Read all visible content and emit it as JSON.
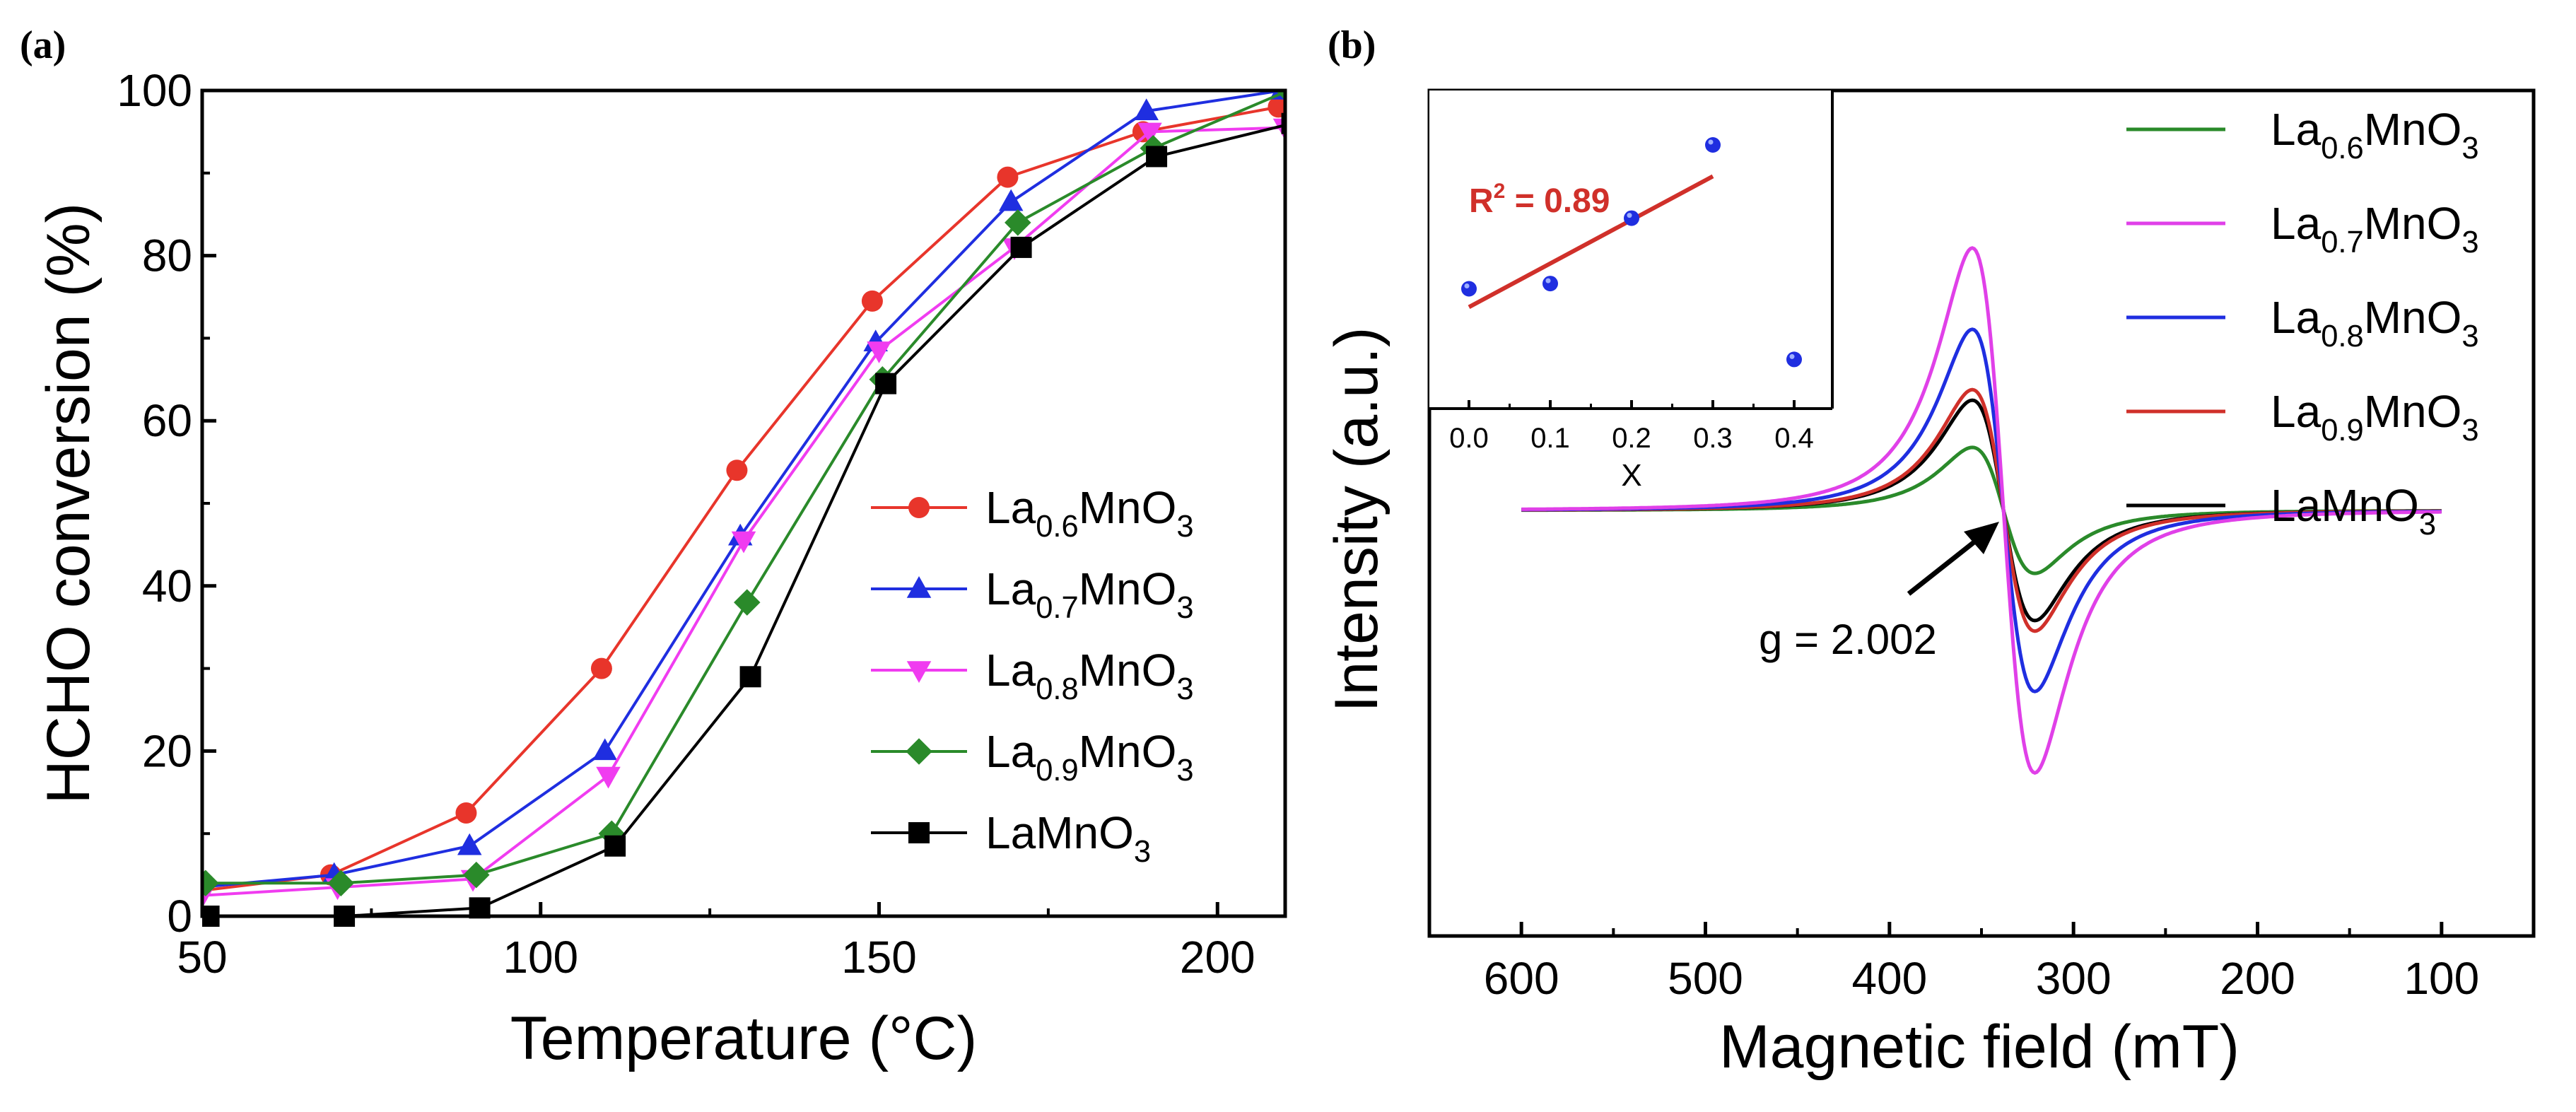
{
  "chart_data": [
    {
      "panel": "(a)",
      "type": "line",
      "xlabel": "Temperature (°C)",
      "ylabel": "HCHO conversion (%)",
      "xlim": [
        50,
        210
      ],
      "ylim": [
        0,
        100
      ],
      "xticks": [
        50,
        100,
        150,
        200
      ],
      "yticks": [
        0,
        20,
        40,
        60,
        80,
        100
      ],
      "series": [
        {
          "name": "La0.6MnO3",
          "label": {
            "base": "La",
            "sub": "0.6",
            "rest": "MnO",
            "sub2": "3"
          },
          "color": "#e8352b",
          "marker": "circle",
          "x": [
            50,
            70,
            90,
            110,
            130,
            150,
            170,
            190,
            210
          ],
          "y": [
            3,
            5,
            12.5,
            30,
            54,
            74.5,
            89.5,
            95,
            98
          ]
        },
        {
          "name": "La0.7MnO3",
          "label": {
            "base": "La",
            "sub": "0.7",
            "rest": "MnO",
            "sub2": "3"
          },
          "color": "#1f2ee0",
          "marker": "triangle-up",
          "x": [
            50,
            70,
            90,
            110,
            130,
            150,
            170,
            190,
            210
          ],
          "y": [
            3.5,
            5,
            8.5,
            20,
            46,
            69.5,
            86.5,
            97.5,
            100
          ]
        },
        {
          "name": "La0.8MnO3",
          "label": {
            "base": "La",
            "sub": "0.8",
            "rest": "MnO",
            "sub2": "3"
          },
          "color": "#f03cf0",
          "marker": "triangle-down",
          "x": [
            50,
            70,
            90,
            110,
            130,
            150,
            170,
            190,
            210
          ],
          "y": [
            2.5,
            3.5,
            4.5,
            17,
            45.5,
            68.5,
            81,
            95,
            95.5
          ]
        },
        {
          "name": "La0.9MnO3",
          "label": {
            "base": "La",
            "sub": "0.9",
            "rest": "MnO",
            "sub2": "3"
          },
          "color": "#2a8a2a",
          "marker": "diamond",
          "x": [
            50,
            70,
            90,
            110,
            130,
            150,
            170,
            190,
            210
          ],
          "y": [
            4,
            4,
            5,
            10,
            38,
            65,
            84,
            93,
            100
          ]
        },
        {
          "name": "LaMnO3",
          "label": {
            "base": "LaMnO",
            "sub": "",
            "rest": "",
            "sub2": "3"
          },
          "color": "#000000",
          "marker": "square",
          "x": [
            50,
            70,
            90,
            110,
            130,
            150,
            170,
            190,
            210
          ],
          "y": [
            0,
            0,
            1,
            8.5,
            29,
            64.5,
            81,
            92,
            96
          ]
        }
      ]
    },
    {
      "panel": "(b)",
      "type": "line",
      "xlabel": "Magnetic field (mT)",
      "ylabel": "Intensity (a.u.)",
      "xlim": [
        650,
        50
      ],
      "xticks": [
        600,
        500,
        400,
        300,
        200,
        100
      ],
      "center_field": 338,
      "annotation": "g = 2.002",
      "series": [
        {
          "name": "La0.6MnO3",
          "label": {
            "base": "La",
            "sub": "0.6",
            "rest": "MnO",
            "sub2": "3"
          },
          "color": "#2a8a2a",
          "amplitude": 0.24
        },
        {
          "name": "La0.7MnO3",
          "label": {
            "base": "La",
            "sub": "0.7",
            "rest": "MnO",
            "sub2": "3"
          },
          "color": "#e040e8",
          "amplitude": 1.0
        },
        {
          "name": "La0.8MnO3",
          "label": {
            "base": "La",
            "sub": "0.8",
            "rest": "MnO",
            "sub2": "3"
          },
          "color": "#1f2ee0",
          "amplitude": 0.69
        },
        {
          "name": "La0.9MnO3",
          "label": {
            "base": "La",
            "sub": "0.9",
            "rest": "MnO",
            "sub2": "3"
          },
          "color": "#d0302a",
          "amplitude": 0.46
        },
        {
          "name": "LaMnO3",
          "label": {
            "base": "LaMnO",
            "sub": "",
            "rest": "",
            "sub2": "3"
          },
          "color": "#000000",
          "amplitude": 0.42
        }
      ],
      "inset": {
        "type": "scatter",
        "xlabel": "X",
        "xticks": [
          0.0,
          0.1,
          0.2,
          0.3,
          0.4
        ],
        "points_x": [
          0.0,
          0.1,
          0.2,
          0.3,
          0.4
        ],
        "points_y": [
          0.35,
          0.37,
          0.62,
          0.9,
          0.08
        ],
        "fit_x": [
          0.0,
          0.3
        ],
        "fit_y": [
          0.28,
          0.78
        ],
        "r2_label": "R",
        "r2_sup": "2",
        "r2_value": " = 0.89",
        "point_color": "#1f2ee0",
        "fit_color": "#d0302a"
      }
    }
  ]
}
